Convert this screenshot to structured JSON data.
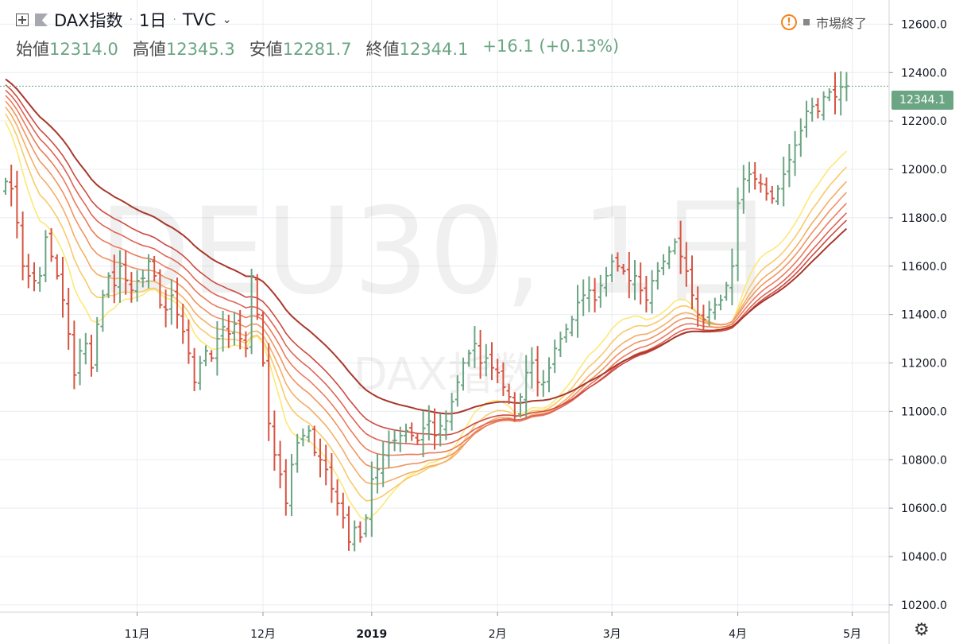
{
  "header": {
    "symbol": "DAX指数",
    "interval": "1日",
    "source": "TVC",
    "open_label": "始値",
    "open_value": "12314.0",
    "high_label": "高値",
    "high_value": "12345.3",
    "low_label": "安値",
    "low_value": "12281.7",
    "close_label": "終値",
    "close_value": "12344.1",
    "change": "+16.1",
    "change_pct": "(+0.13%)",
    "market_status": "市場終了"
  },
  "watermark": {
    "main": "DEU30, 1日",
    "sub": "DAX指数"
  },
  "last_price_label": "12344.1",
  "colors": {
    "up": "#6ba583",
    "down": "#d75442",
    "grid": "#e9ecf0",
    "warning": "#f0861b",
    "ribbon": [
      "#fde879",
      "#f8ca6a",
      "#f4ae66",
      "#ef9462",
      "#ea7b5d",
      "#df6355",
      "#cc4a42",
      "#a8382c"
    ]
  },
  "icons": [
    "expand-icon",
    "flag-icon",
    "chevron-down-icon",
    "warning-icon",
    "gear-icon"
  ],
  "chart_data": {
    "type": "ohlc",
    "x_ticks": [
      "11月",
      "12月",
      "2019",
      "2月",
      "3月",
      "4月",
      "5月"
    ],
    "y_ticks": [
      "12600.0",
      "12400.0",
      "12200.0",
      "12000.0",
      "11800.0",
      "11600.0",
      "11400.0",
      "11200.0",
      "11000.0",
      "10800.0",
      "10600.0",
      "10400.0",
      "10200.0"
    ],
    "ylim": [
      10170,
      12700
    ],
    "grid": true,
    "anchors": [
      {
        "month": "11月",
        "bar": 23
      },
      {
        "month": "12月",
        "bar": 45
      },
      {
        "month": "2019",
        "bar": 64
      },
      {
        "month": "2月",
        "bar": 86
      },
      {
        "month": "3月",
        "bar": 106
      },
      {
        "month": "4月",
        "bar": 128
      },
      {
        "month": "5月",
        "bar": 148
      }
    ],
    "closes": [
      11950,
      11920,
      11780,
      11600,
      11560,
      11540,
      11560,
      11720,
      11640,
      11560,
      11460,
      11320,
      11150,
      11250,
      11280,
      11180,
      11360,
      11480,
      11560,
      11520,
      11600,
      11540,
      11500,
      11540,
      11550,
      11620,
      11560,
      11440,
      11420,
      11480,
      11400,
      11330,
      11240,
      11120,
      11200,
      11250,
      11220,
      11300,
      11350,
      11320,
      11360,
      11300,
      11260,
      11560,
      11400,
      11200,
      10950,
      10820,
      10740,
      10620,
      10780,
      10870,
      10900,
      10920,
      10830,
      10800,
      10760,
      10680,
      10620,
      10560,
      10460,
      10520,
      10480,
      10560,
      10720,
      10760,
      10820,
      10870,
      10880,
      10900,
      10920,
      10900,
      10880,
      10930,
      10960,
      10900,
      10940,
      10960,
      11040,
      11120,
      11200,
      11240,
      11280,
      11200,
      11220,
      11180,
      11160,
      11100,
      11060,
      10980,
      11060,
      11160,
      11200,
      11120,
      11120,
      11180,
      11260,
      11300,
      11340,
      11380,
      11450,
      11480,
      11500,
      11460,
      11520,
      11560,
      11620,
      11600,
      11580,
      11540,
      11560,
      11500,
      11460,
      11540,
      11580,
      11620,
      11660,
      11700,
      11640,
      11580,
      11480,
      11400,
      11380,
      11420,
      11440,
      11460,
      11520,
      11600,
      11860,
      11960,
      11980,
      11960,
      11940,
      11900,
      11880,
      11920,
      11980,
      12040,
      12100,
      12160,
      12240,
      12260,
      12240,
      12300,
      12320,
      12300,
      12340,
      12344.1
    ],
    "ribbon_series": [
      {
        "window": 10,
        "end_value": 12075
      },
      {
        "window": 15,
        "end_value": 12010
      },
      {
        "window": 20,
        "end_value": 11950
      },
      {
        "window": 25,
        "end_value": 11905
      },
      {
        "window": 30,
        "end_value": 11860
      },
      {
        "window": 35,
        "end_value": 11820
      },
      {
        "window": 40,
        "end_value": 11790
      },
      {
        "window": 50,
        "end_value": 11755
      }
    ],
    "last_value": 12344.1
  }
}
